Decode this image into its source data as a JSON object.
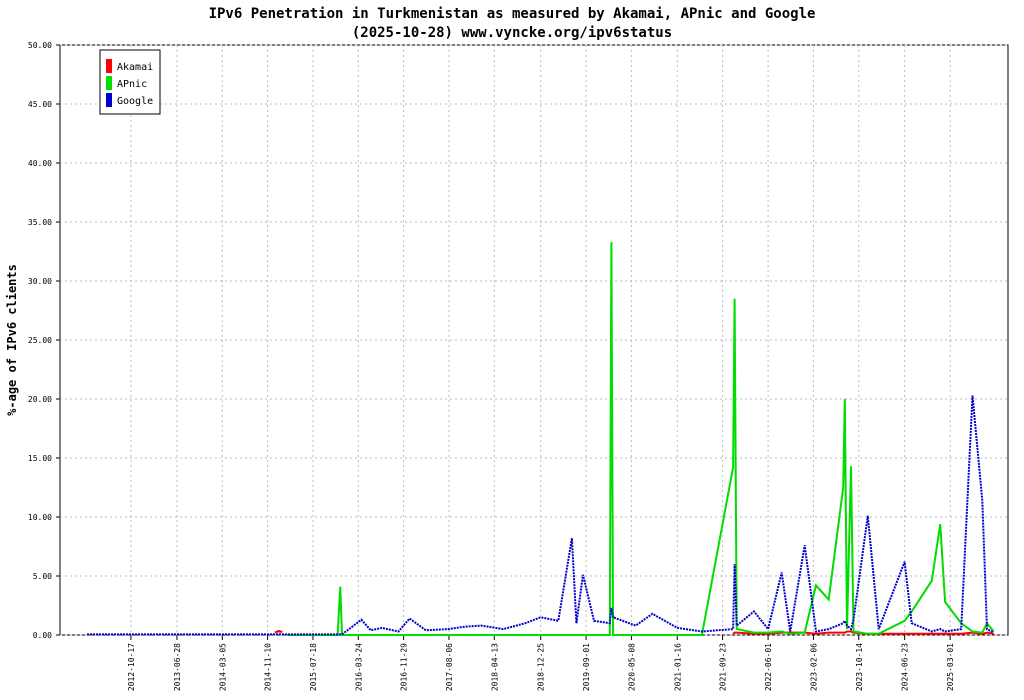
{
  "chart_data": {
    "type": "line",
    "title": "IPv6 Penetration in Turkmenistan as measured by Akamai, APnic and Google",
    "subtitle": "(2025-10-28) www.vyncke.org/ipv6status",
    "y_label": "%-age of IPv6 clients",
    "x": [
      "2012-02-18",
      "2013-01-01",
      "2014-01-01",
      "2014-12-20",
      "2015-01-10",
      "2015-01-30",
      "2015-03-01",
      "2015-12-01",
      "2015-12-16",
      "2015-12-25",
      "2016-04-10",
      "2016-06-01",
      "2016-08-01",
      "2016-11-01",
      "2017-01-01",
      "2017-04-01",
      "2017-08-01",
      "2017-11-01",
      "2018-02-01",
      "2018-06-01",
      "2018-10-01",
      "2018-12-25",
      "2019-04-01",
      "2019-06-15",
      "2019-07-10",
      "2019-08-15",
      "2019-10-15",
      "2020-01-10",
      "2020-01-19",
      "2020-01-28",
      "2020-06-01",
      "2020-09-01",
      "2021-01-16",
      "2021-06-01",
      "2021-11-20",
      "2021-11-28",
      "2021-12-10",
      "2022-03-15",
      "2022-06-01",
      "2022-08-15",
      "2022-10-01",
      "2022-12-20",
      "2023-02-20",
      "2023-05-01",
      "2023-07-20",
      "2023-07-29",
      "2023-08-10",
      "2023-09-01",
      "2023-09-15",
      "2023-12-03",
      "2024-02-01",
      "2024-06-23",
      "2024-08-01",
      "2024-11-20",
      "2025-01-05",
      "2025-02-01",
      "2025-05-01",
      "2025-07-02",
      "2025-08-25",
      "2025-09-20",
      "2025-10-27"
    ],
    "series": [
      {
        "name": "Akamai",
        "color": "#ff0000",
        "dash": false,
        "values": [
          null,
          null,
          null,
          0.2,
          0.35,
          0.25,
          null,
          null,
          null,
          null,
          null,
          null,
          null,
          null,
          null,
          null,
          null,
          null,
          null,
          null,
          null,
          null,
          null,
          null,
          null,
          null,
          null,
          null,
          null,
          null,
          null,
          null,
          null,
          null,
          0.1,
          0.2,
          0.2,
          0.1,
          0.1,
          0.2,
          0.2,
          0.2,
          0.1,
          0.2,
          0.2,
          0.2,
          0.3,
          0.3,
          0.2,
          0.1,
          0.1,
          0.1,
          0.1,
          0.1,
          0.1,
          0.1,
          0.1,
          0.2,
          0.1,
          0.2,
          0.1
        ]
      },
      {
        "name": "APnic",
        "color": "#00dd00",
        "dash": false,
        "values": [
          null,
          null,
          null,
          null,
          null,
          null,
          0,
          0,
          4.1,
          0,
          0,
          0,
          0,
          0,
          0,
          0,
          0,
          0,
          0,
          0,
          0,
          0,
          0,
          0,
          0,
          0,
          0,
          0,
          33.3,
          0,
          0,
          0,
          0,
          0,
          14.2,
          28.5,
          0.5,
          0.2,
          0.2,
          0.3,
          0.1,
          0.2,
          4.2,
          3.0,
          12.5,
          20.0,
          0.5,
          14.3,
          0.3,
          0.1,
          0.1,
          1.2,
          2.0,
          4.6,
          9.4,
          2.8,
          1.0,
          0.3,
          0.2,
          1.0,
          0.3
        ]
      },
      {
        "name": "Google",
        "color": "#0000cc",
        "dash": true,
        "values": [
          0.05,
          0.05,
          0.05,
          0.05,
          0.05,
          0.05,
          0.05,
          0.05,
          0.05,
          0.05,
          1.3,
          0.4,
          0.6,
          0.3,
          1.4,
          0.4,
          0.5,
          0.7,
          0.8,
          0.5,
          1.0,
          1.5,
          1.2,
          8.2,
          1.0,
          5.1,
          1.2,
          1.0,
          2.3,
          1.5,
          0.8,
          1.8,
          0.6,
          0.3,
          0.5,
          6.0,
          0.8,
          2.0,
          0.5,
          5.3,
          0.3,
          7.6,
          0.3,
          0.5,
          1.0,
          1.2,
          0.8,
          0.5,
          1.3,
          10.1,
          0.5,
          6.2,
          1.0,
          0.3,
          0.5,
          0.3,
          0.5,
          20.3,
          11.4,
          0.5,
          0.2
        ]
      }
    ],
    "xlim": [
      "2011-09-22",
      "2026-01-14"
    ],
    "xticks": [
      "2012-10-17",
      "2013-06-28",
      "2014-03-05",
      "2014-11-10",
      "2015-07-18",
      "2016-03-24",
      "2016-11-29",
      "2017-08-06",
      "2018-04-13",
      "2018-12-25",
      "2019-09-01",
      "2020-05-08",
      "2021-01-16",
      "2021-09-23",
      "2022-06-01",
      "2023-02-06",
      "2023-10-14",
      "2024-06-23",
      "2025-03-01"
    ],
    "ylim": [
      0,
      50
    ],
    "yticks": [
      {
        "value": 0,
        "label": "0.00"
      },
      {
        "value": 5,
        "label": "5.00"
      },
      {
        "value": 10,
        "label": "10.00"
      },
      {
        "value": 15,
        "label": "15.00"
      },
      {
        "value": 20,
        "label": "20.00"
      },
      {
        "value": 25,
        "label": "25.00"
      },
      {
        "value": 30,
        "label": "30.00"
      },
      {
        "value": 35,
        "label": "35.00"
      },
      {
        "value": 40,
        "label": "40.00"
      },
      {
        "value": 45,
        "label": "45.00"
      },
      {
        "value": 50,
        "label": "50.00"
      }
    ],
    "grid": true,
    "legend": "top-left"
  }
}
